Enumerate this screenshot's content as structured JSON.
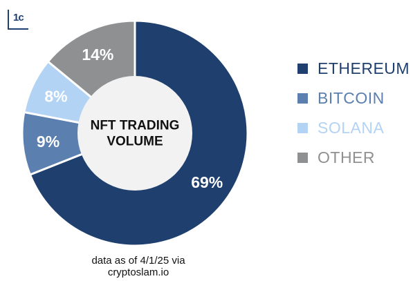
{
  "logo": {
    "text": "1c"
  },
  "chart_data": {
    "type": "pie",
    "donut": true,
    "center_label": [
      "NFT TRADING",
      "VOLUME"
    ],
    "categories": [
      "ETHEREUM",
      "BITCOIN",
      "SOLANA",
      "OTHER"
    ],
    "values": [
      69,
      9,
      8,
      14
    ],
    "data_labels": [
      "69%",
      "9%",
      "8%",
      "14%"
    ],
    "colors": [
      "#1f3f6e",
      "#5b7fae",
      "#b3d3f5",
      "#8f9092"
    ],
    "legend_placement": "right",
    "label_color": "#ffffff"
  },
  "footnote": "data as of 4/1/25 via cryptoslam.io"
}
